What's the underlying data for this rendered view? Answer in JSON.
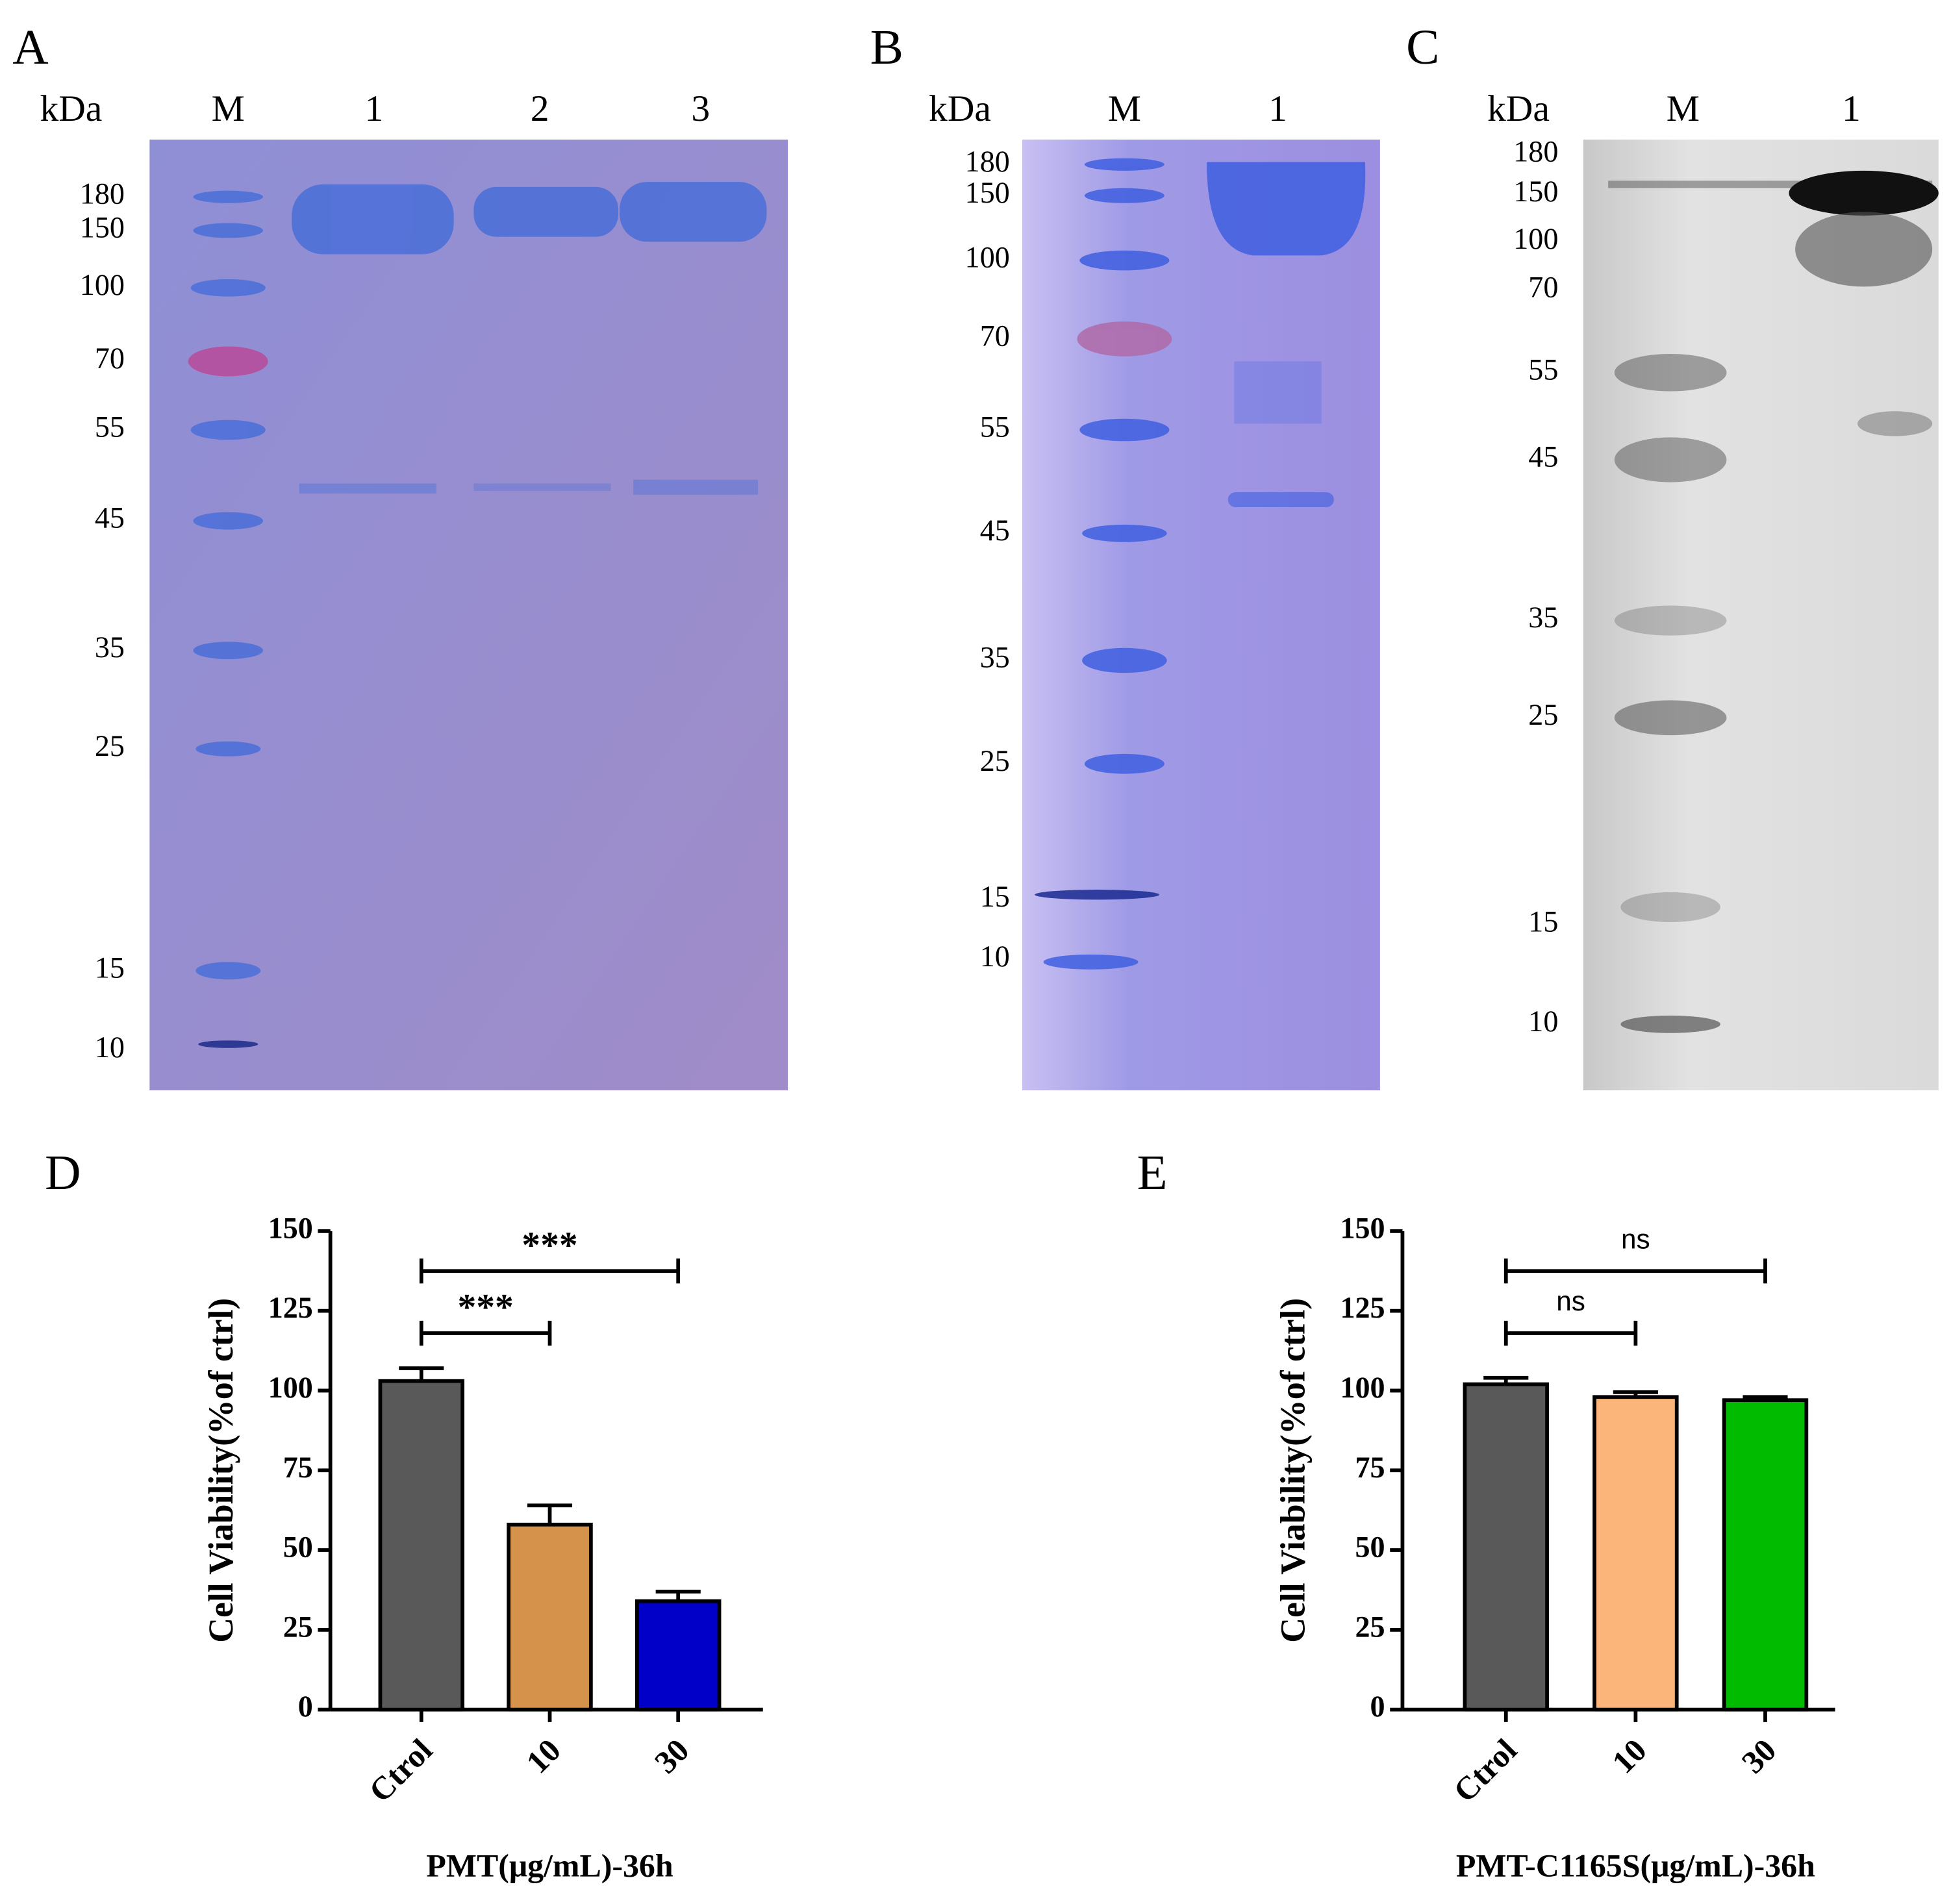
{
  "panels": [
    "A",
    "B",
    "C",
    "D",
    "E"
  ],
  "gels": [
    {
      "unit": "kDa",
      "lanes": [
        "M",
        "1",
        "2",
        "3"
      ],
      "markers": [
        "180",
        "150",
        "100",
        "70",
        "55",
        "45",
        "35",
        "25",
        "15",
        "10"
      ]
    },
    {
      "unit": "kDa",
      "lanes": [
        "M",
        "1"
      ],
      "markers": [
        "180",
        "150",
        "100",
        "70",
        "55",
        "45",
        "35",
        "25",
        "15",
        "10"
      ]
    },
    {
      "unit": "kDa",
      "lanes": [
        "M",
        "1"
      ],
      "markers": [
        "180",
        "150",
        "100",
        "70",
        "55",
        "45",
        "35",
        "25",
        "15",
        "10"
      ]
    }
  ],
  "chart_data": [
    {
      "type": "bar",
      "ylabel": "Cell Viability(%of ctrl)",
      "xlabel": "PMT(μg/mL)-36h",
      "categories": [
        "Ctrol",
        "10",
        "30"
      ],
      "values": [
        103,
        58,
        34
      ],
      "errors": [
        4,
        6,
        3
      ],
      "colors": [
        "#595959",
        "#d4924a",
        "#0000c8"
      ],
      "ylim": [
        0,
        150
      ],
      "yticks": [
        0,
        25,
        50,
        75,
        100,
        125,
        150
      ],
      "annotations": [
        {
          "text": "***",
          "from": 0,
          "to": 1,
          "y": 118
        },
        {
          "text": "***",
          "from": 0,
          "to": 2,
          "y": 137.5
        }
      ]
    },
    {
      "type": "bar",
      "ylabel": "Cell Viability(%of ctrl)",
      "xlabel": "PMT-C1165S(μg/mL)-36h",
      "categories": [
        "Ctrol",
        "10",
        "30"
      ],
      "values": [
        102,
        98,
        97
      ],
      "errors": [
        2,
        1.5,
        1
      ],
      "colors": [
        "#595959",
        "#fbb57a",
        "#00bb00"
      ],
      "ylim": [
        0,
        150
      ],
      "yticks": [
        0,
        25,
        50,
        75,
        100,
        125,
        150
      ],
      "annotations": [
        {
          "text": "ns",
          "from": 0,
          "to": 1,
          "y": 118
        },
        {
          "text": "ns",
          "from": 0,
          "to": 2,
          "y": 137.5
        }
      ]
    }
  ]
}
